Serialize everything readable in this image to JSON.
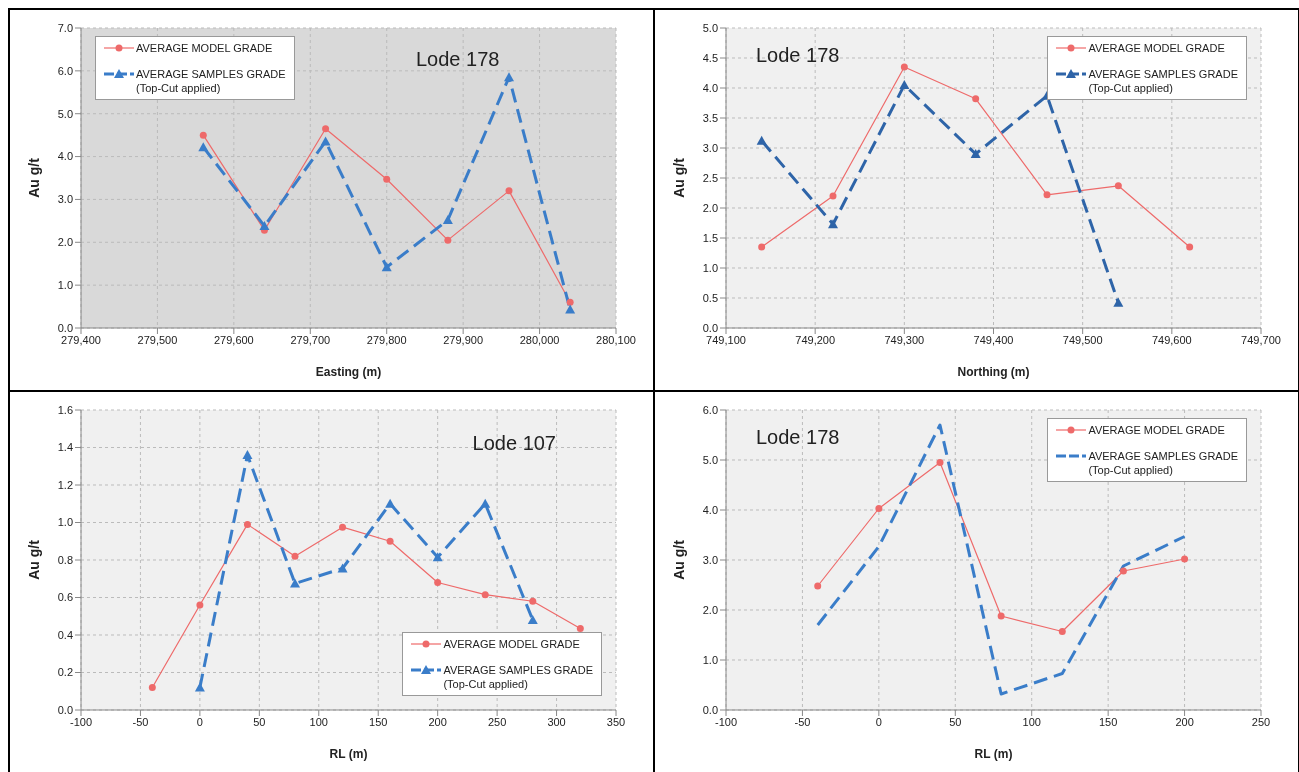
{
  "chart_data": [
    {
      "type": "line",
      "xlabel": "Easting (m)",
      "ylabel": "Au  g/t",
      "annotations": [
        "Lode 178"
      ],
      "x": [
        279560,
        279640,
        279720,
        279800,
        279880,
        279960,
        280040
      ],
      "series": [
        {
          "name": "AVERAGE MODEL GRADE",
          "color": "#ee6a6a",
          "marker": "circle",
          "line_style": "solid",
          "values": [
            4.5,
            2.28,
            4.65,
            3.47,
            2.05,
            3.2,
            0.6
          ]
        },
        {
          "name": "AVERAGE SAMPLES GRADE\n(Top-Cut applied)",
          "color": "#3a7dc9",
          "marker": "triangle",
          "line_style": "dashed",
          "values": [
            4.22,
            2.38,
            4.35,
            1.42,
            2.52,
            5.85,
            0.43
          ]
        }
      ],
      "xlim": [
        279400,
        280100
      ],
      "xticks": [
        {
          "value": 279400,
          "label": "279,400"
        },
        {
          "value": 279500,
          "label": "279,500"
        },
        {
          "value": 279600,
          "label": "279,600"
        },
        {
          "value": 279700,
          "label": "279,700"
        },
        {
          "value": 279800,
          "label": "279,800"
        },
        {
          "value": 279900,
          "label": "279,900"
        },
        {
          "value": 280000,
          "label": "280,000"
        },
        {
          "value": 280100,
          "label": "280,100"
        }
      ],
      "ylim": [
        0,
        7
      ],
      "yticks": [
        {
          "value": 0,
          "label": "0.0"
        },
        {
          "value": 1,
          "label": "1.0"
        },
        {
          "value": 2,
          "label": "2.0"
        },
        {
          "value": 3,
          "label": "3.0"
        },
        {
          "value": 4,
          "label": "4.0"
        },
        {
          "value": 5,
          "label": "5.0"
        },
        {
          "value": 6,
          "label": "6.0"
        },
        {
          "value": 7,
          "label": "7.0"
        }
      ],
      "grid": true,
      "legend": "top left"
    },
    {
      "type": "line",
      "xlabel": "Northing (m)",
      "ylabel": "Au  g/t",
      "annotations": [
        "Lode 178"
      ],
      "x": [
        749140,
        749220,
        749300,
        749380,
        749460,
        749540,
        749620
      ],
      "series": [
        {
          "name": "AVERAGE MODEL GRADE",
          "color": "#ee6a6a",
          "marker": "circle",
          "line_style": "solid",
          "values": [
            1.35,
            2.2,
            4.35,
            3.82,
            2.22,
            2.37,
            1.35
          ]
        },
        {
          "name": "AVERAGE SAMPLES GRADE\n(Top-Cut applied)",
          "color": "#2e64a8",
          "marker": "triangle",
          "line_style": "dashed",
          "values": [
            3.12,
            1.73,
            4.05,
            2.9,
            3.87,
            0.42,
            null
          ]
        }
      ],
      "xlim": [
        749100,
        749700
      ],
      "xticks": [
        {
          "value": 749100,
          "label": "749,100"
        },
        {
          "value": 749200,
          "label": "749,200"
        },
        {
          "value": 749300,
          "label": "749,300"
        },
        {
          "value": 749400,
          "label": "749,400"
        },
        {
          "value": 749500,
          "label": "749,500"
        },
        {
          "value": 749600,
          "label": "749,600"
        },
        {
          "value": 749700,
          "label": "749,700"
        }
      ],
      "ylim": [
        0,
        5
      ],
      "yticks": [
        {
          "value": 0,
          "label": "0.0"
        },
        0.5,
        {
          "value": 1,
          "label": "1.0"
        },
        1.5,
        {
          "value": 2,
          "label": "2.0"
        },
        2.5,
        {
          "value": 3,
          "label": "3.0"
        },
        3.5,
        {
          "value": 4,
          "label": "4.0"
        },
        4.5,
        {
          "value": 5,
          "label": "5.0"
        }
      ],
      "grid": true,
      "legend": "top right"
    },
    {
      "type": "line",
      "xlabel": "RL (m)",
      "ylabel": "Au  g/t",
      "annotations": [
        "Lode 107"
      ],
      "x": [
        -40,
        0,
        40,
        80,
        120,
        160,
        200,
        240,
        280,
        320
      ],
      "series": [
        {
          "name": "AVERAGE MODEL GRADE",
          "color": "#ee6a6a",
          "marker": "circle",
          "line_style": "solid",
          "values": [
            0.12,
            0.56,
            0.99,
            0.82,
            0.975,
            0.9,
            0.68,
            0.615,
            0.58,
            0.435
          ]
        },
        {
          "name": "AVERAGE SAMPLES GRADE\n(Top-Cut applied)",
          "color": "#3a7dc9",
          "marker": "triangle",
          "line_style": "dashed",
          "x": [
            0,
            40,
            80,
            120,
            160,
            200,
            240,
            280
          ],
          "values": [
            0.12,
            1.36,
            0.675,
            0.755,
            1.1,
            0.815,
            1.1,
            0.48
          ]
        }
      ],
      "xlim": [
        -100,
        350
      ],
      "xticks": [
        -100,
        -50,
        0,
        50,
        100,
        150,
        200,
        250,
        300,
        350
      ],
      "ylim": [
        0,
        1.6
      ],
      "yticks": [
        {
          "value": 0,
          "label": "0.0"
        },
        0.2,
        0.4,
        0.6,
        0.8,
        {
          "value": 1,
          "label": "1.0"
        },
        1.2,
        1.4,
        1.6
      ],
      "grid": true,
      "legend": "bottom right"
    },
    {
      "type": "line",
      "xlabel": "RL (m)",
      "ylabel": "Au  g/t",
      "annotations": [
        "Lode 178"
      ],
      "x": [
        -40,
        0,
        40,
        80,
        120,
        160,
        200
      ],
      "series": [
        {
          "name": "AVERAGE MODEL GRADE",
          "color": "#ee6a6a",
          "marker": "circle",
          "line_style": "solid",
          "values": [
            2.48,
            4.03,
            4.95,
            1.88,
            1.57,
            2.78,
            3.02
          ]
        },
        {
          "name": "AVERAGE SAMPLES GRADE\n(Top-Cut applied)",
          "color": "#3a7dc9",
          "marker": "none",
          "line_style": "dashed",
          "values": [
            1.7,
            3.27,
            5.7,
            0.32,
            0.73,
            2.88,
            3.47
          ]
        }
      ],
      "xlim": [
        -100,
        250
      ],
      "xticks": [
        -100,
        -50,
        0,
        50,
        100,
        150,
        200,
        250
      ],
      "ylim": [
        0,
        6
      ],
      "yticks": [
        {
          "value": 0,
          "label": "0.0"
        },
        {
          "value": 1,
          "label": "1.0"
        },
        {
          "value": 2,
          "label": "2.0"
        },
        {
          "value": 3,
          "label": "3.0"
        },
        {
          "value": 4,
          "label": "4.0"
        },
        {
          "value": 5,
          "label": "5.0"
        },
        {
          "value": 6,
          "label": "6.0"
        }
      ],
      "grid": true,
      "legend": "top right"
    }
  ]
}
